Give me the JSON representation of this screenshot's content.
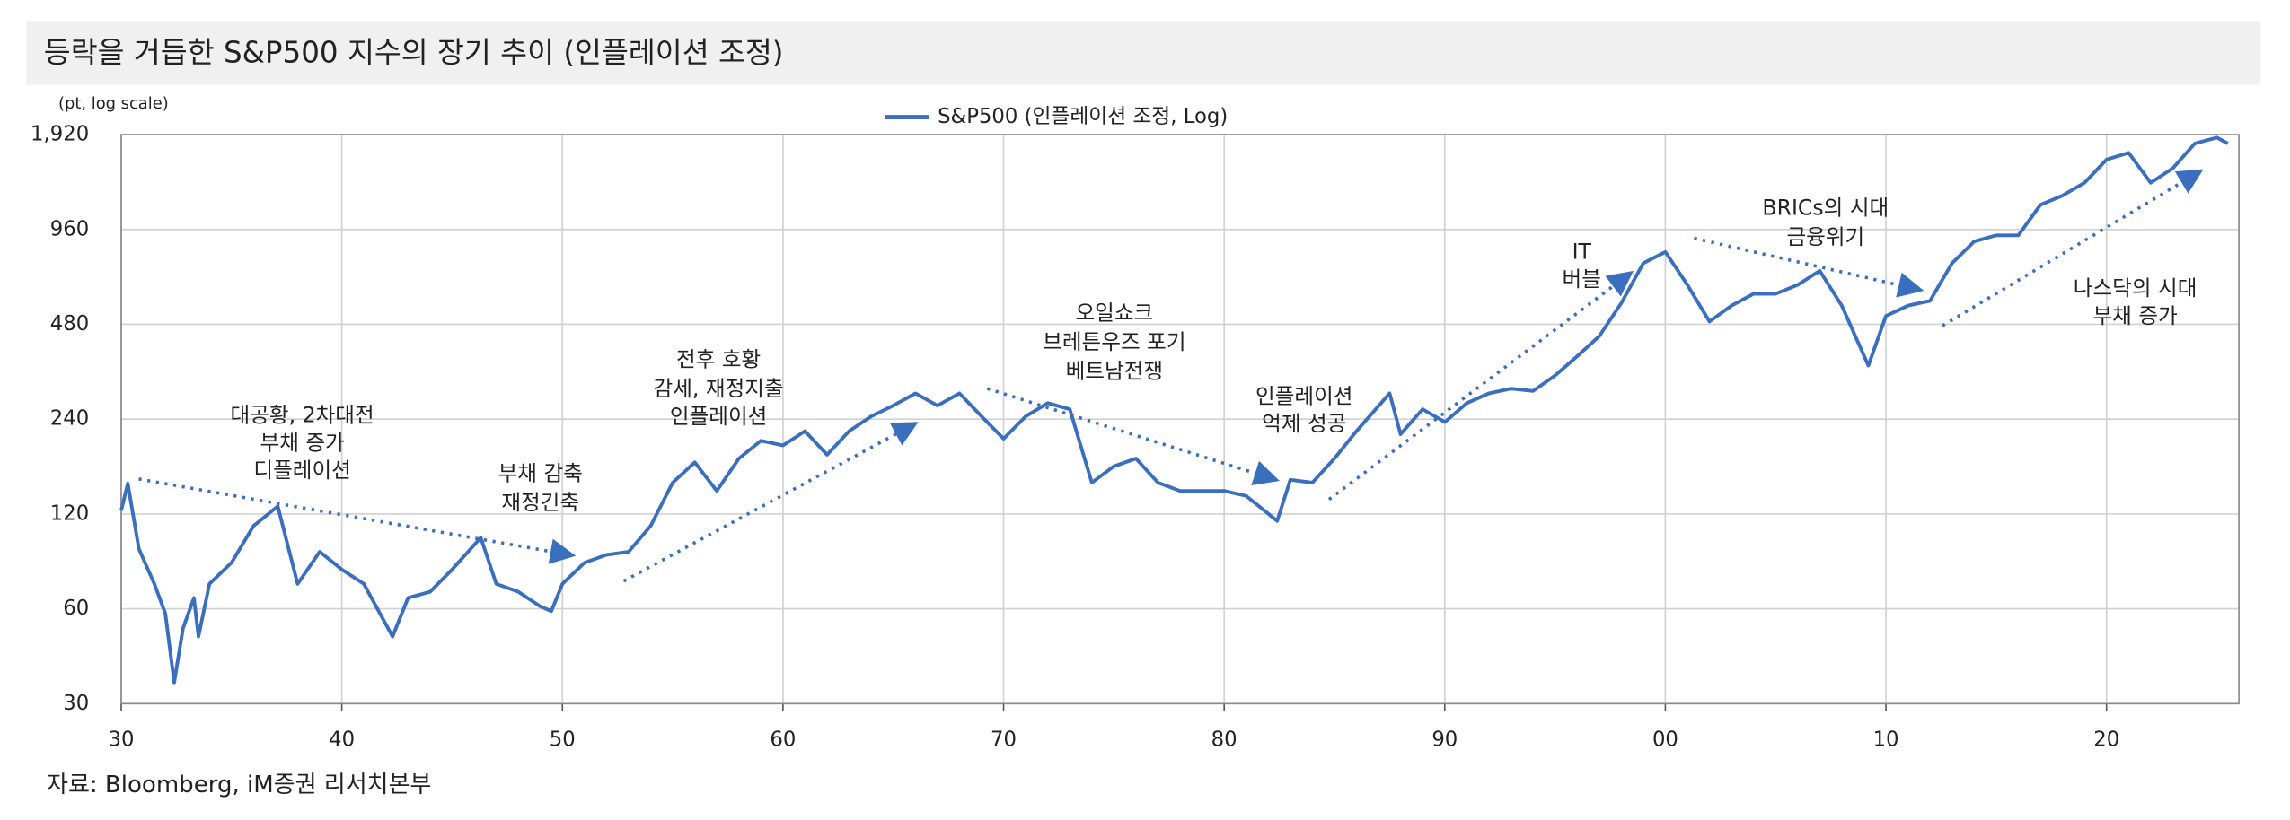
{
  "chart_data": {
    "type": "line",
    "title": "등락을 거듭한 S&P500 지수의 장기 추이 (인플레이션 조정)",
    "y_label": "(pt, log scale)",
    "source": "자료: Bloomberg, iM증권 리서치본부",
    "log_scale": true,
    "grid": true,
    "legend": "top",
    "x": [
      1930,
      1930.3,
      1930.8,
      1931.5,
      1932,
      1932.4,
      1932.8,
      1933.3,
      1933.5,
      1934,
      1935,
      1936,
      1937.1,
      1938,
      1939,
      1940,
      1941,
      1942.3,
      1943,
      1944,
      1945,
      1946.3,
      1947,
      1948,
      1949,
      1949.5,
      1950,
      1951,
      1952,
      1953,
      1954,
      1955,
      1956,
      1957,
      1958,
      1959,
      1960,
      1961,
      1962,
      1963,
      1964,
      1965,
      1966,
      1967,
      1968,
      1969,
      1970,
      1971,
      1972,
      1973,
      1974,
      1975,
      1976,
      1977,
      1978,
      1979,
      1980,
      1981,
      1982.4,
      1983,
      1984,
      1985,
      1986,
      1987.5,
      1988,
      1989,
      1990,
      1991,
      1992,
      1993,
      1994,
      1995,
      1996,
      1997,
      1998,
      1999,
      2000,
      2001,
      2002,
      2003,
      2004,
      2005,
      2006,
      2007,
      2008,
      2009.2,
      2010,
      2011,
      2012,
      2013,
      2014,
      2015,
      2016,
      2017,
      2018,
      2019,
      2020,
      2021,
      2022,
      2023,
      2024,
      2025,
      2025.5
    ],
    "series": [
      {
        "name": "S&P500 (인플레이션 조정, Log)",
        "color": "#3a6fc0",
        "values": [
          123,
          150,
          93,
          72,
          58,
          35,
          52,
          65,
          49,
          72,
          84,
          110,
          127,
          72,
          91,
          80,
          72,
          49,
          65,
          68,
          80,
          101,
          72,
          68,
          61,
          59,
          72,
          84,
          89,
          91,
          110,
          151,
          175,
          142,
          180,
          205,
          198,
          220,
          185,
          220,
          245,
          265,
          290,
          265,
          290,
          245,
          208,
          245,
          270,
          258,
          151,
          170,
          180,
          151,
          142,
          142,
          142,
          137,
          114,
          154,
          151,
          180,
          220,
          290,
          215,
          258,
          235,
          270,
          290,
          300,
          295,
          330,
          380,
          440,
          560,
          750,
          815,
          640,
          490,
          550,
          600,
          600,
          640,
          710,
          550,
          355,
          510,
          550,
          570,
          750,
          880,
          920,
          920,
          1150,
          1230,
          1350,
          1600,
          1680,
          1350,
          1500,
          1800,
          1880,
          1800
        ]
      }
    ],
    "xlim": [
      1930,
      2026
    ],
    "xticks": [
      {
        "value": 1930,
        "label": "30"
      },
      {
        "value": 1940,
        "label": "40"
      },
      {
        "value": 1950,
        "label": "50"
      },
      {
        "value": 1960,
        "label": "60"
      },
      {
        "value": 1970,
        "label": "70"
      },
      {
        "value": 1980,
        "label": "80"
      },
      {
        "value": 1990,
        "label": "90"
      },
      {
        "value": 2000,
        "label": "00"
      },
      {
        "value": 2010,
        "label": "10"
      },
      {
        "value": 2020,
        "label": "20"
      }
    ],
    "ylim": [
      30,
      1920
    ],
    "yticks": [
      30,
      60,
      120,
      240,
      480,
      960,
      {
        "value": 1920,
        "label": "1,920"
      }
    ],
    "annotations": [
      [
        "대공황, 2차대전",
        "부채 증가",
        "디플레이션"
      ],
      [
        "부채 감축",
        "재정긴축"
      ],
      [
        "전후 호황",
        "감세, 재정지출",
        "인플레이션"
      ],
      [
        "오일쇼크",
        "브레튼우즈 포기",
        "베트남전쟁"
      ],
      [
        "인플레이션",
        "억제 성공"
      ],
      [
        "IT",
        "버블"
      ],
      [
        "BRICs의 시대",
        "금융위기"
      ],
      [
        "나스닥의 시대",
        "부채 증가"
      ]
    ]
  }
}
